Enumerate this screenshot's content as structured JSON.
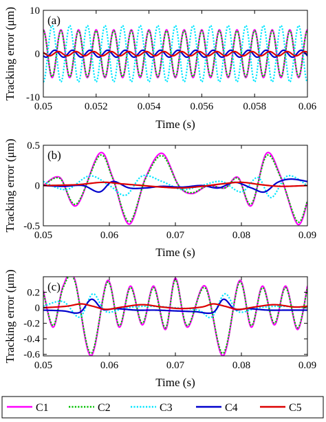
{
  "chart_data": [
    {
      "type": "line",
      "panel_label": "(a)",
      "xlabel": "Time (s)",
      "ylabel": "Tracking error (μm)",
      "xlim": [
        0.05,
        0.06
      ],
      "ylim": [
        -10,
        10
      ],
      "xticks": [
        0.05,
        0.052,
        0.054,
        0.056,
        0.058,
        0.06
      ],
      "xtick_labels": [
        "0.05",
        "0.052",
        "0.054",
        "0.056",
        "0.058",
        "0.06"
      ],
      "yticks": [
        -10,
        0,
        10
      ],
      "ytick_labels": [
        "-10",
        "0",
        "10"
      ],
      "grid": false,
      "series": [
        {
          "name": "C1",
          "color": "#ff00ff",
          "style": "solid",
          "frequency_hz": 1500,
          "amplitude": 5.5,
          "phase_cycles": 0.25
        },
        {
          "name": "C2",
          "color": "#00c000",
          "style": "dotted",
          "frequency_hz": 1500,
          "amplitude": 5.3,
          "phase_cycles": 0.25
        },
        {
          "name": "C3",
          "color": "#00e5ff",
          "style": "dotted",
          "frequency_hz": 1500,
          "amplitude": 6.5,
          "phase_cycles": 0.75
        },
        {
          "name": "C4",
          "color": "#0000cc",
          "style": "solid",
          "frequency_hz": 1500,
          "amplitude": 0.8,
          "phase_cycles": 0.6
        },
        {
          "name": "C5",
          "color": "#dd0000",
          "style": "solid",
          "frequency_hz": 1500,
          "amplitude": 0.5,
          "phase_cycles": 0.4
        }
      ]
    },
    {
      "type": "line",
      "panel_label": "(b)",
      "xlabel": "Time (s)",
      "ylabel": "Tracking error (μm)",
      "xlim": [
        0.05,
        0.09
      ],
      "ylim": [
        -0.5,
        0.5
      ],
      "xticks": [
        0.05,
        0.06,
        0.07,
        0.08,
        0.09
      ],
      "xtick_labels": [
        "0.05",
        "0.06",
        "0.07",
        "0.08",
        "0.09"
      ],
      "yticks": [
        -0.5,
        0,
        0.5
      ],
      "ytick_labels": [
        "-0.5",
        "0",
        "0.5"
      ],
      "grid": false,
      "series": [
        {
          "name": "C1",
          "color": "#ff00ff",
          "style": "solid",
          "x": [
            0.05,
            0.0525,
            0.055,
            0.0585,
            0.0605,
            0.063,
            0.0655,
            0.068,
            0.0705,
            0.0725,
            0.075,
            0.0775,
            0.0795,
            0.0815,
            0.0838,
            0.086,
            0.0885,
            0.09
          ],
          "y": [
            0.0,
            0.1,
            -0.25,
            0.4,
            0.1,
            -0.48,
            0.1,
            0.4,
            0.0,
            -0.1,
            0.0,
            -0.03,
            0.1,
            -0.25,
            0.4,
            0.1,
            -0.48,
            -0.2
          ]
        },
        {
          "name": "C2",
          "color": "#00c000",
          "style": "dotted",
          "x": [
            0.05,
            0.0525,
            0.055,
            0.0585,
            0.0605,
            0.063,
            0.0655,
            0.068,
            0.0705,
            0.0725,
            0.075,
            0.0775,
            0.0795,
            0.0815,
            0.0838,
            0.086,
            0.0885,
            0.09
          ],
          "y": [
            0.0,
            0.09,
            -0.23,
            0.37,
            0.09,
            -0.45,
            0.09,
            0.37,
            0.0,
            -0.09,
            0.0,
            -0.03,
            0.09,
            -0.23,
            0.37,
            0.09,
            -0.45,
            -0.19
          ]
        },
        {
          "name": "C3",
          "color": "#00e5ff",
          "style": "dotted",
          "x": [
            0.05,
            0.0535,
            0.057,
            0.06,
            0.0625,
            0.065,
            0.068,
            0.071,
            0.074,
            0.077,
            0.08,
            0.0825,
            0.0845,
            0.087,
            0.09
          ],
          "y": [
            0.05,
            -0.05,
            0.12,
            0.0,
            -0.12,
            0.12,
            0.05,
            -0.05,
            0.0,
            0.05,
            -0.08,
            0.1,
            -0.15,
            0.12,
            0.0
          ]
        },
        {
          "name": "C4",
          "color": "#0000cc",
          "style": "solid",
          "x": [
            0.05,
            0.053,
            0.056,
            0.0585,
            0.0605,
            0.063,
            0.0655,
            0.068,
            0.071,
            0.074,
            0.0765,
            0.079,
            0.0815,
            0.0835,
            0.0855,
            0.0875,
            0.09
          ],
          "y": [
            0.0,
            -0.01,
            0.0,
            -0.08,
            0.05,
            -0.03,
            -0.03,
            -0.01,
            -0.02,
            0.0,
            -0.03,
            0.04,
            -0.03,
            -0.08,
            0.04,
            0.08,
            0.05
          ]
        },
        {
          "name": "C5",
          "color": "#dd0000",
          "style": "solid",
          "x": [
            0.05,
            0.055,
            0.059,
            0.062,
            0.065,
            0.068,
            0.071,
            0.074,
            0.077,
            0.08,
            0.083,
            0.086,
            0.09
          ],
          "y": [
            0.0,
            0.01,
            0.04,
            0.02,
            0.0,
            -0.02,
            -0.03,
            -0.01,
            0.02,
            0.04,
            0.01,
            -0.01,
            0.0
          ]
        }
      ]
    },
    {
      "type": "line",
      "panel_label": "(c)",
      "xlabel": "Time (s)",
      "ylabel": "Tracking error (μm)",
      "xlim": [
        0.05,
        0.09
      ],
      "ylim": [
        -0.62,
        0.4
      ],
      "xticks": [
        0.05,
        0.06,
        0.07,
        0.08,
        0.09
      ],
      "xtick_labels": [
        "0.05",
        "0.06",
        "0.07",
        "0.08",
        "0.09"
      ],
      "yticks": [
        -0.6,
        -0.4,
        -0.2,
        0,
        0.2
      ],
      "ytick_labels": [
        "-0.6",
        "-0.4",
        "-0.2",
        "0",
        "0.2"
      ],
      "grid": false,
      "series": [
        {
          "name": "C1",
          "color": "#ff00ff",
          "style": "solid",
          "x": [
            0.05,
            0.0515,
            0.053,
            0.0547,
            0.0572,
            0.0597,
            0.0615,
            0.0632,
            0.065,
            0.0667,
            0.0685,
            0.07,
            0.0718,
            0.0745,
            0.0772,
            0.0797,
            0.0815,
            0.0832,
            0.085,
            0.0867,
            0.0885,
            0.09
          ],
          "y": [
            0.22,
            -0.25,
            0.28,
            0.38,
            -0.62,
            0.35,
            -0.25,
            0.28,
            -0.22,
            0.28,
            -0.28,
            0.38,
            -0.25,
            0.28,
            -0.62,
            0.35,
            -0.25,
            0.28,
            -0.22,
            0.28,
            -0.28,
            0.28
          ]
        },
        {
          "name": "C2",
          "color": "#00c000",
          "style": "dotted",
          "x": [
            0.05,
            0.0515,
            0.053,
            0.0547,
            0.0572,
            0.0597,
            0.0615,
            0.0632,
            0.065,
            0.0667,
            0.0685,
            0.07,
            0.0718,
            0.0745,
            0.0772,
            0.0797,
            0.0815,
            0.0832,
            0.085,
            0.0867,
            0.0885,
            0.09
          ],
          "y": [
            0.2,
            -0.23,
            0.26,
            0.36,
            -0.59,
            0.33,
            -0.23,
            0.26,
            -0.2,
            0.26,
            -0.26,
            0.36,
            -0.23,
            0.26,
            -0.59,
            0.33,
            -0.23,
            0.26,
            -0.2,
            0.26,
            -0.26,
            0.26
          ]
        },
        {
          "name": "C3",
          "color": "#00e5ff",
          "style": "dotted",
          "x": [
            0.05,
            0.053,
            0.0555,
            0.0575,
            0.0595,
            0.0625,
            0.066,
            0.07,
            0.0735,
            0.0755,
            0.0775,
            0.0795,
            0.0825,
            0.086,
            0.09
          ],
          "y": [
            0.02,
            0.08,
            -0.12,
            0.18,
            -0.05,
            0.0,
            0.02,
            0.0,
            -0.03,
            -0.12,
            0.18,
            -0.05,
            0.0,
            0.02,
            0.0
          ]
        },
        {
          "name": "C4",
          "color": "#0000cc",
          "style": "solid",
          "x": [
            0.05,
            0.053,
            0.0555,
            0.0573,
            0.059,
            0.061,
            0.064,
            0.067,
            0.07,
            0.073,
            0.0757,
            0.0773,
            0.079,
            0.081,
            0.084,
            0.087,
            0.09
          ],
          "y": [
            -0.03,
            -0.04,
            -0.06,
            0.11,
            -0.02,
            -0.01,
            -0.03,
            -0.03,
            -0.04,
            -0.05,
            -0.06,
            0.11,
            -0.02,
            -0.01,
            -0.03,
            -0.03,
            -0.03
          ]
        },
        {
          "name": "C5",
          "color": "#dd0000",
          "style": "solid",
          "x": [
            0.05,
            0.0535,
            0.0557,
            0.0575,
            0.0595,
            0.062,
            0.065,
            0.068,
            0.071,
            0.074,
            0.0757,
            0.0775,
            0.0795,
            0.082,
            0.085,
            0.088,
            0.09
          ],
          "y": [
            0.0,
            0.02,
            0.05,
            0.02,
            -0.02,
            0.01,
            0.04,
            0.01,
            -0.01,
            0.01,
            0.05,
            0.02,
            -0.02,
            0.01,
            0.04,
            0.01,
            0.02
          ]
        }
      ]
    }
  ],
  "legend": {
    "placement": "bottom",
    "entries": [
      {
        "label": "C1",
        "color": "#ff00ff",
        "style": "solid"
      },
      {
        "label": "C2",
        "color": "#00c000",
        "style": "dotted"
      },
      {
        "label": "C3",
        "color": "#00e5ff",
        "style": "dotted"
      },
      {
        "label": "C4",
        "color": "#0000cc",
        "style": "solid"
      },
      {
        "label": "C5",
        "color": "#dd0000",
        "style": "solid"
      }
    ]
  }
}
